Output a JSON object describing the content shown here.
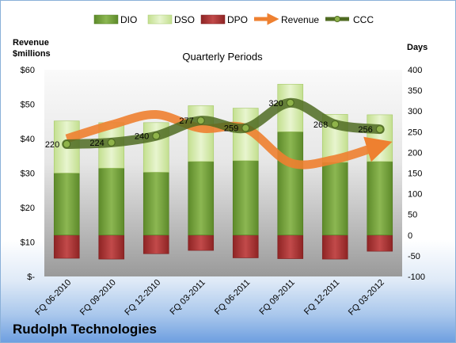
{
  "chart_data": {
    "type": "bar",
    "subtitle": "Quarterly Periods",
    "company": "Rudolph Technologies",
    "left_axis_title": [
      "Revenue",
      "$millions"
    ],
    "right_axis_title": "Days",
    "left_ticks": [
      "$60",
      "$50",
      "$40",
      "$30",
      "$20",
      "$10",
      "$-"
    ],
    "left_range": [
      0,
      60
    ],
    "right_ticks": [
      "400",
      "350",
      "300",
      "250",
      "200",
      "150",
      "100",
      "50",
      "0",
      "-50",
      "-100"
    ],
    "right_range": [
      -100,
      400
    ],
    "categories": [
      "FQ 06-2010",
      "FQ 09-2010",
      "FQ 12-2010",
      "FQ 03-2011",
      "FQ 06-2011",
      "FQ 09-2011",
      "FQ 12-2011",
      "FQ 03-2012"
    ],
    "legend": [
      "DIO",
      "DSO",
      "DPO",
      "Revenue",
      "CCC"
    ],
    "series": [
      {
        "name": "DIO",
        "axis": "days",
        "values": [
          150,
          162,
          152,
          178,
          180,
          250,
          176,
          178
        ]
      },
      {
        "name": "DSO",
        "axis": "days",
        "values": [
          126,
          110,
          120,
          135,
          127,
          115,
          116,
          113
        ]
      },
      {
        "name": "DPO",
        "axis": "days",
        "values": [
          -56,
          -58,
          -45,
          -37,
          -55,
          -57,
          -58,
          -39
        ]
      },
      {
        "name": "Revenue",
        "axis": "money",
        "values": [
          40,
          44,
          47,
          43,
          43,
          33,
          34,
          38
        ]
      },
      {
        "name": "CCC",
        "axis": "days",
        "values": [
          220,
          224,
          240,
          277,
          259,
          320,
          268,
          256
        ]
      }
    ],
    "ccc_labels": [
      "220",
      "224",
      "240",
      "277",
      "259",
      "320",
      "268",
      "256"
    ],
    "colors": {
      "dio": "#7ea646",
      "dio_dark": "#4f7a1e",
      "dso": "#d4eaa8",
      "dso_dark": "#a6c86a",
      "dpo": "#b33a3a",
      "dpo_dark": "#7d1f1f",
      "revenue": "#ee8030",
      "ccc": "#4f6b22",
      "ccc_point": "#8fb34a"
    }
  }
}
